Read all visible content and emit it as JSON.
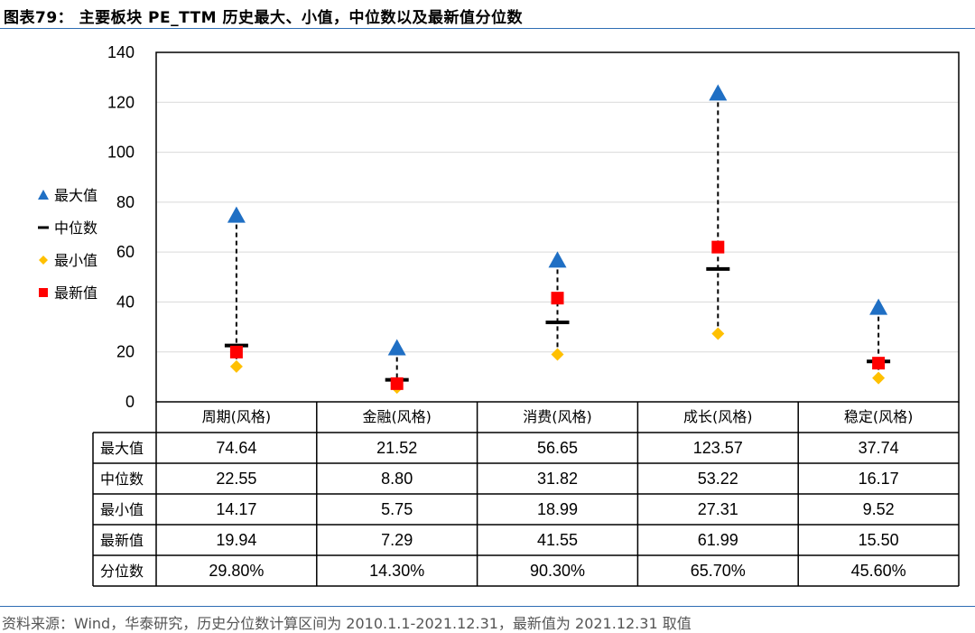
{
  "header": {
    "title": "图表79：  主要板块 PE_TTM 历史最大、小值，中位数以及最新值分位数"
  },
  "footer": {
    "source": "资料来源：Wind，华泰研究，历史分位数计算区间为 2010.1.1-2021.12.31，最新值为 2021.12.31 取值"
  },
  "colors": {
    "max": "#1f6fc4",
    "median": "#000000",
    "min": "#ffc000",
    "latest": "#ff0000",
    "accent_line": "#2e6db4"
  },
  "chart_data": {
    "type": "scatter",
    "title": "主要板块 PE_TTM 历史最大、小值，中位数以及最新值分位数",
    "categories": [
      "周期(风格)",
      "金融(风格)",
      "消费(风格)",
      "成长(风格)",
      "稳定(风格)"
    ],
    "ylim": [
      0,
      140
    ],
    "yticks": [
      0,
      20,
      40,
      60,
      80,
      100,
      120,
      140
    ],
    "grid": true,
    "legend_position": "left",
    "series": [
      {
        "name": "最大值",
        "key": "max",
        "marker": "triangle",
        "values": [
          74.64,
          21.52,
          56.65,
          123.57,
          37.74
        ]
      },
      {
        "name": "中位数",
        "key": "median",
        "marker": "dash",
        "values": [
          22.55,
          8.8,
          31.82,
          53.22,
          16.17
        ]
      },
      {
        "name": "最小值",
        "key": "min",
        "marker": "diamond",
        "values": [
          14.17,
          5.75,
          18.99,
          27.31,
          9.52
        ]
      },
      {
        "name": "最新值",
        "key": "latest",
        "marker": "square",
        "values": [
          19.94,
          7.29,
          41.55,
          61.99,
          15.5
        ]
      }
    ],
    "table": {
      "rows": [
        {
          "label": "最大值",
          "cells": [
            "74.64",
            "21.52",
            "56.65",
            "123.57",
            "37.74"
          ]
        },
        {
          "label": "中位数",
          "cells": [
            "22.55",
            "8.80",
            "31.82",
            "53.22",
            "16.17"
          ]
        },
        {
          "label": "最小值",
          "cells": [
            "14.17",
            "5.75",
            "18.99",
            "27.31",
            "9.52"
          ]
        },
        {
          "label": "最新值",
          "cells": [
            "19.94",
            "7.29",
            "41.55",
            "61.99",
            "15.50"
          ]
        },
        {
          "label": "分位数",
          "cells": [
            "29.80%",
            "14.30%",
            "90.30%",
            "65.70%",
            "45.60%"
          ]
        }
      ]
    }
  }
}
